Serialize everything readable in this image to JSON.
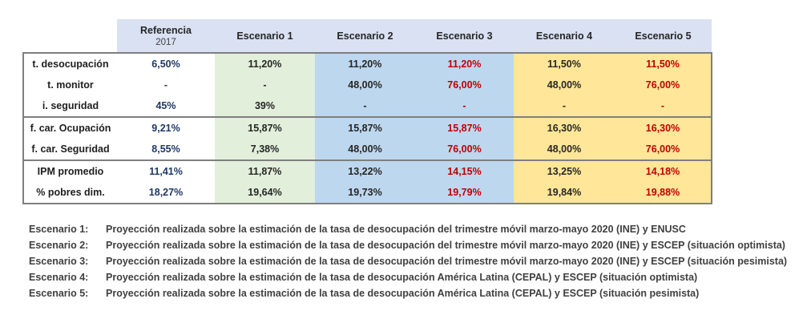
{
  "table": {
    "headers": {
      "referencia": "Referencia",
      "referencia_year": "2017",
      "scenarios": [
        "Escenario 1",
        "Escenario 2",
        "Escenario 3",
        "Escenario 4",
        "Escenario 5"
      ]
    },
    "groups": [
      {
        "rows": [
          {
            "label": "t. desocupación",
            "ref": "6,50%",
            "e1": "11,20%",
            "e2": "11,20%",
            "e3": "11,20%",
            "e4": "11,50%",
            "e5": "11,50%"
          },
          {
            "label": "t. monitor",
            "ref": "-",
            "e1": "-",
            "e2": "48,00%",
            "e3": "76,00%",
            "e4": "48,00%",
            "e5": "76,00%"
          },
          {
            "label": "i. seguridad",
            "ref": "45%",
            "e1": "39%",
            "e2": "-",
            "e3": "-",
            "e4": "-",
            "e5": "-"
          }
        ]
      },
      {
        "rows": [
          {
            "label": "f. car. Ocupación",
            "ref": "9,21%",
            "e1": "15,87%",
            "e2": "15,87%",
            "e3": "15,87%",
            "e4": "16,30%",
            "e5": "16,30%"
          },
          {
            "label": "f. car. Seguridad",
            "ref": "8,55%",
            "e1": "7,38%",
            "e2": "48,00%",
            "e3": "76,00%",
            "e4": "48,00%",
            "e5": "76,00%"
          }
        ]
      },
      {
        "rows": [
          {
            "label": "IPM promedio",
            "ref": "11,41%",
            "e1": "11,87%",
            "e2": "13,22%",
            "e3": "14,15%",
            "e4": "13,25%",
            "e5": "14,18%"
          },
          {
            "label": "% pobres dim.",
            "ref": "18,27%",
            "e1": "19,64%",
            "e2": "19,73%",
            "e3": "19,79%",
            "e4": "19,84%",
            "e5": "19,88%"
          }
        ]
      }
    ]
  },
  "legend": [
    {
      "key": "Escenario 1:",
      "text": "Proyección realizada sobre la estimación de la tasa de desocupación del trimestre móvil marzo-mayo 2020 (INE) y ENUSC"
    },
    {
      "key": "Escenario 2:",
      "text": "Proyección realizada sobre la estimación de la tasa de desocupación del trimestre móvil marzo-mayo 2020 (INE) y ESCEP (situación optimista)"
    },
    {
      "key": "Escenario 3:",
      "text": "Proyección realizada sobre la estimación de la tasa de desocupación del trimestre móvil marzo-mayo 2020 (INE) y ESCEP (situación pesimista)"
    },
    {
      "key": "Escenario 4:",
      "text": "Proyección realizada sobre la estimación de la tasa de desocupación América Latina (CEPAL) y ESCEP (situación optimista)"
    },
    {
      "key": "Escenario 5:",
      "text": "Proyección realizada sobre la estimación de la tasa de desocupación América Latina (CEPAL) y ESCEP (situación pesimista)"
    }
  ]
}
